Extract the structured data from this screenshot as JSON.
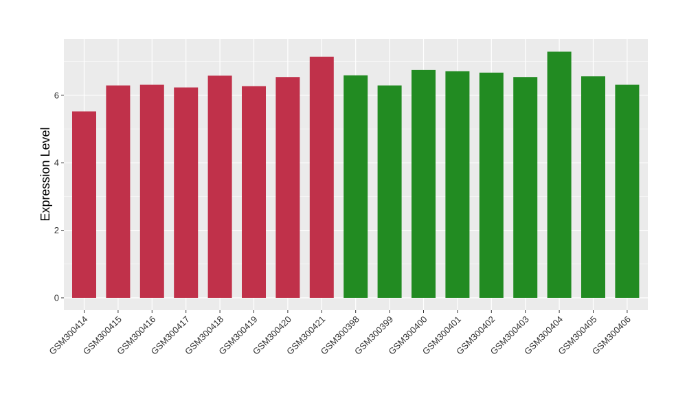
{
  "chart_data": {
    "type": "bar",
    "title": "",
    "xlabel": "",
    "ylabel": "Expression Level",
    "ylim": [
      0,
      7.6
    ],
    "y_ticks": [
      0,
      2,
      4,
      6
    ],
    "grid": true,
    "categories": [
      "GSM300414",
      "GSM300415",
      "GSM300416",
      "GSM300417",
      "GSM300418",
      "GSM300419",
      "GSM300420",
      "GSM300421",
      "GSM300398",
      "GSM300399",
      "GSM300400",
      "GSM300401",
      "GSM300402",
      "GSM300403",
      "GSM300404",
      "GSM300405",
      "GSM300406"
    ],
    "values": [
      5.52,
      6.29,
      6.31,
      6.23,
      6.58,
      6.27,
      6.54,
      7.14,
      6.59,
      6.29,
      6.75,
      6.71,
      6.67,
      6.54,
      7.29,
      6.56,
      6.31
    ],
    "bar_colors": [
      "#c0314a",
      "#c0314a",
      "#c0314a",
      "#c0314a",
      "#c0314a",
      "#c0314a",
      "#c0314a",
      "#c0314a",
      "#228b22",
      "#228b22",
      "#228b22",
      "#228b22",
      "#228b22",
      "#228b22",
      "#228b22",
      "#228b22",
      "#228b22"
    ],
    "panel_background": "#ebebeb",
    "gridline_color": "#ffffff"
  }
}
